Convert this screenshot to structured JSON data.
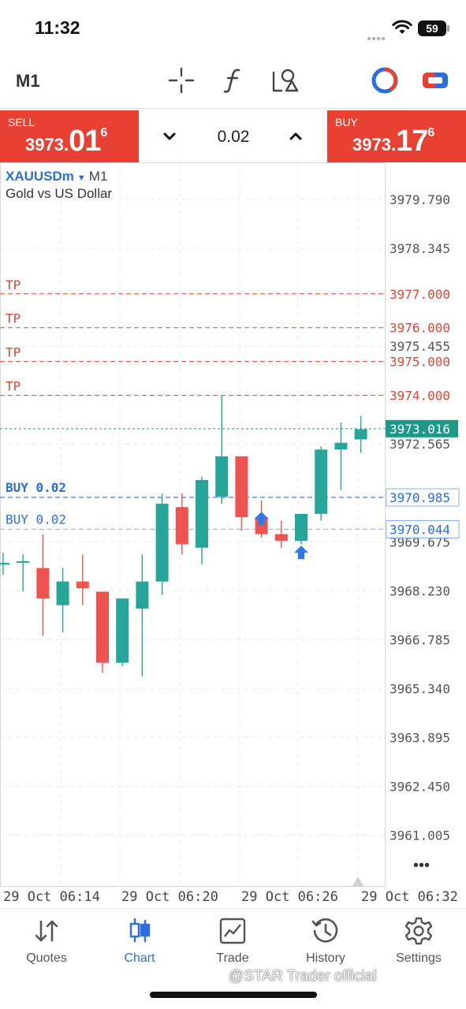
{
  "status": {
    "time": "11:32",
    "battery": "59"
  },
  "toolbar": {
    "timeframe": "M1",
    "icons": [
      "crosshair-icon",
      "function-icon",
      "objects-icon",
      "account-icon",
      "toggle-icon"
    ]
  },
  "trade": {
    "sell_label": "SELL",
    "sell_price_small": "3973.",
    "sell_price_big": "01",
    "sell_price_sup": "6",
    "buy_label": "BUY",
    "buy_price_small": "3973.",
    "buy_price_big": "17",
    "buy_price_sup": "6",
    "lot": "0.02"
  },
  "chart": {
    "symbol": "XAUUSDm",
    "timeframe": "M1",
    "description": "Gold vs US Dollar",
    "more": "•••",
    "colors": {
      "bull": "#26a69a",
      "bear": "#ef5350",
      "tp": "#d84a3a",
      "buy_line": "#2a6fdb",
      "current": "#1e9987"
    }
  },
  "chart_data": {
    "type": "candlestick",
    "ylim": [
      3960.0,
      3980.6
    ],
    "y_ticks": [
      "3979.790",
      "3978.345",
      "3975.455",
      "3972.565",
      "3969.675",
      "3968.230",
      "3966.785",
      "3965.340",
      "3963.895",
      "3962.450",
      "3961.005"
    ],
    "x_ticks": [
      "29 Oct 06:14",
      "29 Oct 06:20",
      "29 Oct 06:26",
      "29 Oct 06:32"
    ],
    "candles": [
      {
        "t": 0,
        "o": 3969.0,
        "h": 3969.35,
        "l": 3968.7,
        "c": 3969.05
      },
      {
        "t": 1,
        "o": 3969.1,
        "h": 3969.3,
        "l": 3968.2,
        "c": 3969.1
      },
      {
        "t": 2,
        "o": 3968.9,
        "h": 3969.9,
        "l": 3966.9,
        "c": 3968.0
      },
      {
        "t": 3,
        "o": 3967.8,
        "h": 3968.9,
        "l": 3967.0,
        "c": 3968.5
      },
      {
        "t": 4,
        "o": 3968.5,
        "h": 3969.3,
        "l": 3967.8,
        "c": 3968.3
      },
      {
        "t": 5,
        "o": 3968.2,
        "h": 3968.2,
        "l": 3965.8,
        "c": 3966.1
      },
      {
        "t": 6,
        "o": 3966.1,
        "h": 3968.0,
        "l": 3966.0,
        "c": 3968.0
      },
      {
        "t": 7,
        "o": 3967.7,
        "h": 3969.3,
        "l": 3965.7,
        "c": 3968.5
      },
      {
        "t": 8,
        "o": 3968.5,
        "h": 3971.1,
        "l": 3968.1,
        "c": 3970.8
      },
      {
        "t": 9,
        "o": 3970.7,
        "h": 3971.1,
        "l": 3969.3,
        "c": 3969.6
      },
      {
        "t": 10,
        "o": 3969.5,
        "h": 3971.6,
        "l": 3969.0,
        "c": 3971.5
      },
      {
        "t": 11,
        "o": 3971.0,
        "h": 3974.0,
        "l": 3970.8,
        "c": 3972.2
      },
      {
        "t": 12,
        "o": 3972.2,
        "h": 3972.2,
        "l": 3970.0,
        "c": 3970.4
      },
      {
        "t": 13,
        "o": 3970.4,
        "h": 3970.9,
        "l": 3969.8,
        "c": 3969.9
      },
      {
        "t": 14,
        "o": 3969.9,
        "h": 3970.3,
        "l": 3969.5,
        "c": 3969.7
      },
      {
        "t": 15,
        "o": 3969.7,
        "h": 3970.5,
        "l": 3969.6,
        "c": 3970.5
      },
      {
        "t": 16,
        "o": 3970.5,
        "h": 3972.5,
        "l": 3970.3,
        "c": 3972.4
      },
      {
        "t": 17,
        "o": 3972.4,
        "h": 3973.2,
        "l": 3971.2,
        "c": 3972.6
      },
      {
        "t": 18,
        "o": 3972.7,
        "h": 3973.4,
        "l": 3972.3,
        "c": 3973.0
      }
    ],
    "tp_lines": [
      {
        "label": "TP",
        "price": "3977.000"
      },
      {
        "label": "TP",
        "price": "3976.000"
      },
      {
        "label": "TP",
        "price": "3975.000"
      },
      {
        "label": "TP",
        "price": "3974.000"
      }
    ],
    "buy_lines": [
      {
        "label": "BUY 0.02",
        "price": "3970.985",
        "bold": true
      },
      {
        "label": "BUY 0.02",
        "price": "3970.044",
        "bold": false
      }
    ],
    "current_price": "3973.016",
    "buy_arrows": [
      {
        "t": 13,
        "price": 3970.35
      },
      {
        "t": 15,
        "price": 3969.35
      }
    ]
  },
  "nav": {
    "items": [
      {
        "label": "Quotes",
        "icon": "quotes-arrows-icon",
        "active": false
      },
      {
        "label": "Chart",
        "icon": "candlestick-icon",
        "active": true
      },
      {
        "label": "Trade",
        "icon": "trade-chart-icon",
        "active": false
      },
      {
        "label": "History",
        "icon": "history-clock-icon",
        "active": false
      },
      {
        "label": "Settings",
        "icon": "gear-icon",
        "active": false
      }
    ]
  },
  "watermark": "@STAR Trader official"
}
